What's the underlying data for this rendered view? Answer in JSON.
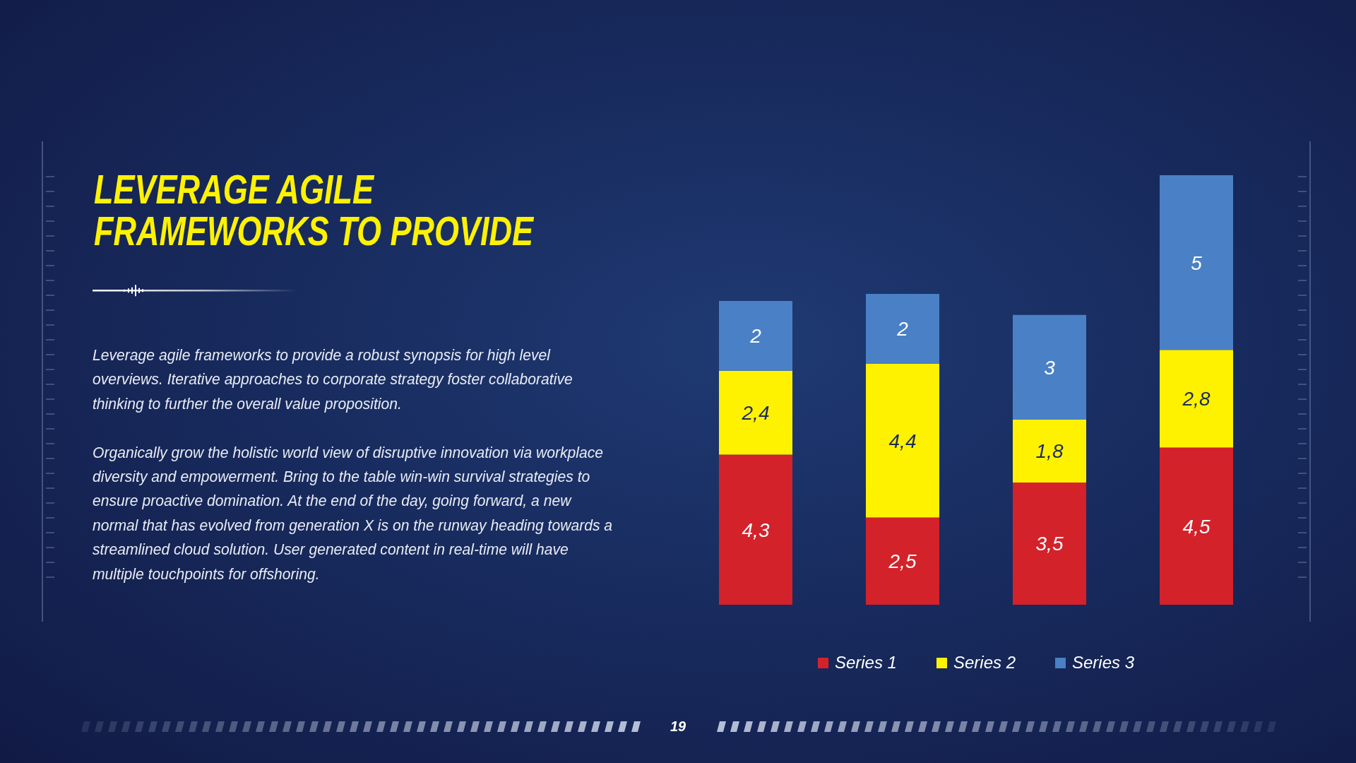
{
  "chart_data": {
    "type": "bar",
    "title": "LEVERAGE AGILE FRAMEWORKS TO PROVIDE",
    "annotations": [
      "Leverage agile frameworks to provide a robust synopsis for high level overviews. Iterative approaches to corporate strategy foster collaborative thinking to further the overall value proposition.",
      "Organically grow the holistic world view of disruptive innovation via workplace diversity and empowerment. Bring to the table win-win survival strategies to ensure proactive domination. At the end of the day, going forward, a new normal that has evolved from generation X is on the runway heading towards a streamlined cloud solution. User generated content in real-time will have multiple touchpoints for offshoring.",
      "19"
    ],
    "categories": [
      null,
      null,
      null,
      null
    ],
    "stacked": true,
    "series": [
      {
        "name": "Series 1",
        "color": "#d3222a",
        "values": [
          4.3,
          2.5,
          3.5,
          4.5
        ],
        "value_labels": [
          "4,3",
          "2,5",
          "3,5",
          "4,5"
        ]
      },
      {
        "name": "Series 2",
        "color": "#fff200",
        "values": [
          2.4,
          4.4,
          1.8,
          2.8
        ],
        "value_labels": [
          "2,4",
          "4,4",
          "1,8",
          "2,8"
        ]
      },
      {
        "name": "Series 3",
        "color": "#4a80c5",
        "values": [
          2,
          2,
          3,
          5
        ],
        "value_labels": [
          "2",
          "2",
          "3",
          "5"
        ]
      }
    ],
    "tick_labels": false,
    "legend": "bottom"
  }
}
